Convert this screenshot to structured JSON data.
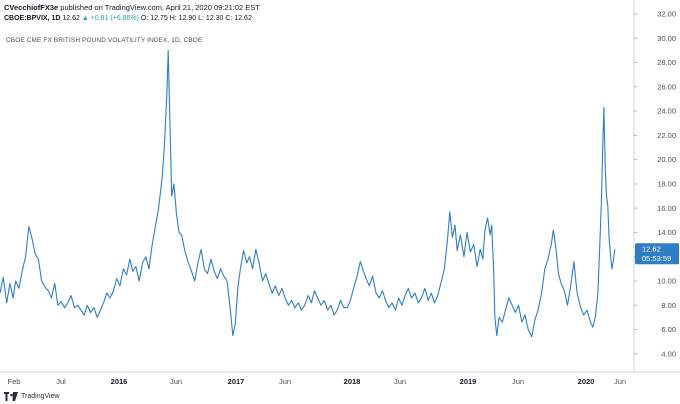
{
  "header": {
    "author": "CVecchiofFX3e",
    "published": "published on TradingView.com, April 21, 2020 09:21:02 EST",
    "symbol": "CBOE:BPVIX, 1D",
    "last": "12.62",
    "change": "▲ +0.81 (+6.86%)",
    "ohlc": "O: 12.75 H: 12.90 L: 12.30 C: 12.62"
  },
  "chart_title": "CBOE CME FX BRITISH POUND VOLATILITY INDEX, 1D, CBOE",
  "price_label": {
    "value": "12.62",
    "countdown": "05:53:59"
  },
  "footer": {
    "brand": "TradingView"
  },
  "colors": {
    "line": "#2f7ec3",
    "label_bg": "#2f7ec3",
    "axis_text": "#4a4e59"
  },
  "chart_data": {
    "type": "line",
    "x_ticks": [
      "Feb",
      "Jul",
      "2016",
      "Jun",
      "2017",
      "Jun",
      "2018",
      "Jun",
      "2019",
      "Jun",
      "2020",
      "Jun"
    ],
    "year_ticks": [
      "2016",
      "2017",
      "2018",
      "2019",
      "2020"
    ],
    "y_ticks": [
      4,
      6,
      8,
      10,
      12,
      14,
      16,
      18,
      20,
      22,
      24,
      26,
      28,
      30,
      32
    ],
    "y_tick_labels": [
      "4.00",
      "6.00",
      "8.00",
      "10.00",
      "12.00",
      "14.00",
      "16.00",
      "18.00",
      "20.00",
      "22.00",
      "24.00",
      "26.00",
      "28.00",
      "30.00",
      "32.00"
    ],
    "ylim": [
      2.5,
      32
    ],
    "xlim": [
      "2015-01-15",
      "2020-06-20"
    ],
    "grid": false,
    "series": [
      {
        "values": [
          [
            "2015-01-15",
            9.0
          ],
          [
            "2015-01-25",
            10.3
          ],
          [
            "2015-02-05",
            8.2
          ],
          [
            "2015-02-15",
            9.8
          ],
          [
            "2015-02-25",
            8.6
          ],
          [
            "2015-03-05",
            10.0
          ],
          [
            "2015-03-15",
            9.4
          ],
          [
            "2015-03-25",
            10.8
          ],
          [
            "2015-04-05",
            12.0
          ],
          [
            "2015-04-15",
            14.5
          ],
          [
            "2015-04-25",
            13.5
          ],
          [
            "2015-05-05",
            12.2
          ],
          [
            "2015-05-15",
            11.8
          ],
          [
            "2015-05-25",
            10.0
          ],
          [
            "2015-06-05",
            9.5
          ],
          [
            "2015-06-15",
            9.2
          ],
          [
            "2015-06-25",
            8.6
          ],
          [
            "2015-07-05",
            9.8
          ],
          [
            "2015-07-15",
            8.0
          ],
          [
            "2015-07-25",
            8.3
          ],
          [
            "2015-08-05",
            7.8
          ],
          [
            "2015-08-15",
            8.2
          ],
          [
            "2015-08-25",
            8.8
          ],
          [
            "2015-09-05",
            7.8
          ],
          [
            "2015-09-15",
            8.0
          ],
          [
            "2015-09-25",
            7.6
          ],
          [
            "2015-10-05",
            7.2
          ],
          [
            "2015-10-15",
            8.0
          ],
          [
            "2015-10-25",
            7.4
          ],
          [
            "2015-11-05",
            7.8
          ],
          [
            "2015-11-15",
            7.0
          ],
          [
            "2015-11-25",
            7.6
          ],
          [
            "2015-12-05",
            8.2
          ],
          [
            "2015-12-15",
            9.0
          ],
          [
            "2015-12-25",
            8.6
          ],
          [
            "2016-01-05",
            9.2
          ],
          [
            "2016-01-15",
            10.2
          ],
          [
            "2016-01-25",
            9.6
          ],
          [
            "2016-02-05",
            11.0
          ],
          [
            "2016-02-15",
            10.5
          ],
          [
            "2016-02-25",
            11.8
          ],
          [
            "2016-03-05",
            10.8
          ],
          [
            "2016-03-15",
            11.2
          ],
          [
            "2016-03-25",
            10.0
          ],
          [
            "2016-04-05",
            11.5
          ],
          [
            "2016-04-15",
            12.0
          ],
          [
            "2016-04-25",
            11.0
          ],
          [
            "2016-05-05",
            13.0
          ],
          [
            "2016-05-15",
            14.5
          ],
          [
            "2016-05-25",
            16.0
          ],
          [
            "2016-06-05",
            18.5
          ],
          [
            "2016-06-12",
            21.0
          ],
          [
            "2016-06-20",
            25.5
          ],
          [
            "2016-06-24",
            29.0
          ],
          [
            "2016-06-28",
            24.5
          ],
          [
            "2016-07-05",
            17.0
          ],
          [
            "2016-07-12",
            18.0
          ],
          [
            "2016-07-20",
            15.5
          ],
          [
            "2016-07-28",
            14.0
          ],
          [
            "2016-08-05",
            13.8
          ],
          [
            "2016-08-15",
            12.5
          ],
          [
            "2016-08-25",
            11.6
          ],
          [
            "2016-09-05",
            10.8
          ],
          [
            "2016-09-15",
            10.0
          ],
          [
            "2016-09-25",
            11.5
          ],
          [
            "2016-10-05",
            12.6
          ],
          [
            "2016-10-15",
            11.0
          ],
          [
            "2016-10-25",
            10.6
          ],
          [
            "2016-11-05",
            11.8
          ],
          [
            "2016-11-15",
            10.8
          ],
          [
            "2016-11-25",
            10.2
          ],
          [
            "2016-12-05",
            11.0
          ],
          [
            "2016-12-15",
            10.4
          ],
          [
            "2016-12-25",
            10.0
          ],
          [
            "2017-01-05",
            7.5
          ],
          [
            "2017-01-12",
            5.5
          ],
          [
            "2017-01-20",
            6.5
          ],
          [
            "2017-01-28",
            9.5
          ],
          [
            "2017-02-05",
            11.0
          ],
          [
            "2017-02-15",
            12.5
          ],
          [
            "2017-02-25",
            11.5
          ],
          [
            "2017-03-05",
            12.0
          ],
          [
            "2017-03-15",
            11.0
          ],
          [
            "2017-03-25",
            12.6
          ],
          [
            "2017-04-05",
            11.4
          ],
          [
            "2017-04-15",
            10.0
          ],
          [
            "2017-04-25",
            10.6
          ],
          [
            "2017-05-05",
            9.8
          ],
          [
            "2017-05-15",
            9.0
          ],
          [
            "2017-05-25",
            9.6
          ],
          [
            "2017-06-05",
            8.8
          ],
          [
            "2017-06-15",
            9.4
          ],
          [
            "2017-06-25",
            8.6
          ],
          [
            "2017-07-05",
            8.0
          ],
          [
            "2017-07-15",
            8.4
          ],
          [
            "2017-07-25",
            7.8
          ],
          [
            "2017-08-05",
            8.2
          ],
          [
            "2017-08-15",
            7.6
          ],
          [
            "2017-08-25",
            8.0
          ],
          [
            "2017-09-05",
            8.8
          ],
          [
            "2017-09-15",
            8.2
          ],
          [
            "2017-09-25",
            9.2
          ],
          [
            "2017-10-05",
            8.6
          ],
          [
            "2017-10-15",
            8.0
          ],
          [
            "2017-10-25",
            8.4
          ],
          [
            "2017-11-05",
            7.6
          ],
          [
            "2017-11-15",
            8.0
          ],
          [
            "2017-11-25",
            7.2
          ],
          [
            "2017-12-05",
            7.6
          ],
          [
            "2017-12-15",
            8.4
          ],
          [
            "2017-12-25",
            7.8
          ],
          [
            "2018-01-05",
            7.8
          ],
          [
            "2018-01-15",
            8.4
          ],
          [
            "2018-01-25",
            9.4
          ],
          [
            "2018-02-05",
            10.4
          ],
          [
            "2018-02-15",
            11.6
          ],
          [
            "2018-02-25",
            10.8
          ],
          [
            "2018-03-05",
            10.2
          ],
          [
            "2018-03-15",
            9.6
          ],
          [
            "2018-03-25",
            10.4
          ],
          [
            "2018-04-05",
            9.0
          ],
          [
            "2018-04-15",
            8.6
          ],
          [
            "2018-04-25",
            9.2
          ],
          [
            "2018-05-05",
            8.4
          ],
          [
            "2018-05-15",
            7.8
          ],
          [
            "2018-05-25",
            8.2
          ],
          [
            "2018-06-05",
            7.6
          ],
          [
            "2018-06-15",
            8.6
          ],
          [
            "2018-06-25",
            8.0
          ],
          [
            "2018-07-05",
            8.8
          ],
          [
            "2018-07-15",
            9.4
          ],
          [
            "2018-07-25",
            8.6
          ],
          [
            "2018-08-05",
            9.0
          ],
          [
            "2018-08-15",
            8.2
          ],
          [
            "2018-08-25",
            8.6
          ],
          [
            "2018-09-05",
            9.4
          ],
          [
            "2018-09-15",
            8.4
          ],
          [
            "2018-09-25",
            9.0
          ],
          [
            "2018-10-05",
            8.2
          ],
          [
            "2018-10-15",
            8.8
          ],
          [
            "2018-10-25",
            9.8
          ],
          [
            "2018-11-05",
            11.0
          ],
          [
            "2018-11-15",
            13.5
          ],
          [
            "2018-11-22",
            15.7
          ],
          [
            "2018-11-30",
            13.6
          ],
          [
            "2018-12-08",
            14.6
          ],
          [
            "2018-12-15",
            12.5
          ],
          [
            "2018-12-25",
            13.8
          ],
          [
            "2019-01-05",
            12.0
          ],
          [
            "2019-01-15",
            14.0
          ],
          [
            "2019-01-25",
            12.4
          ],
          [
            "2019-02-05",
            13.0
          ],
          [
            "2019-02-15",
            11.2
          ],
          [
            "2019-02-25",
            12.6
          ],
          [
            "2019-03-05",
            11.8
          ],
          [
            "2019-03-12",
            14.2
          ],
          [
            "2019-03-20",
            15.2
          ],
          [
            "2019-03-28",
            13.8
          ],
          [
            "2019-04-02",
            14.6
          ],
          [
            "2019-04-08",
            11.0
          ],
          [
            "2019-04-12",
            7.0
          ],
          [
            "2019-04-18",
            5.5
          ],
          [
            "2019-04-25",
            7.0
          ],
          [
            "2019-05-05",
            6.6
          ],
          [
            "2019-05-15",
            7.6
          ],
          [
            "2019-05-25",
            8.6
          ],
          [
            "2019-06-05",
            8.0
          ],
          [
            "2019-06-15",
            7.4
          ],
          [
            "2019-06-25",
            8.0
          ],
          [
            "2019-07-05",
            6.6
          ],
          [
            "2019-07-15",
            7.2
          ],
          [
            "2019-07-25",
            6.0
          ],
          [
            "2019-08-05",
            5.4
          ],
          [
            "2019-08-15",
            6.8
          ],
          [
            "2019-08-25",
            7.6
          ],
          [
            "2019-09-05",
            9.0
          ],
          [
            "2019-09-15",
            11.0
          ],
          [
            "2019-09-25",
            11.8
          ],
          [
            "2019-10-05",
            13.0
          ],
          [
            "2019-10-12",
            14.2
          ],
          [
            "2019-10-20",
            12.6
          ],
          [
            "2019-10-28",
            10.6
          ],
          [
            "2019-11-05",
            9.8
          ],
          [
            "2019-11-15",
            9.2
          ],
          [
            "2019-11-25",
            8.0
          ],
          [
            "2019-12-05",
            9.6
          ],
          [
            "2019-12-15",
            11.6
          ],
          [
            "2019-12-25",
            9.0
          ],
          [
            "2020-01-05",
            7.8
          ],
          [
            "2020-01-15",
            7.2
          ],
          [
            "2020-01-25",
            7.6
          ],
          [
            "2020-02-05",
            6.6
          ],
          [
            "2020-02-12",
            6.2
          ],
          [
            "2020-02-20",
            7.0
          ],
          [
            "2020-02-28",
            9.0
          ],
          [
            "2020-03-05",
            13.0
          ],
          [
            "2020-03-10",
            16.5
          ],
          [
            "2020-03-14",
            21.0
          ],
          [
            "2020-03-18",
            24.3
          ],
          [
            "2020-03-22",
            19.5
          ],
          [
            "2020-03-26",
            17.0
          ],
          [
            "2020-03-30",
            16.2
          ],
          [
            "2020-04-03",
            13.5
          ],
          [
            "2020-04-08",
            12.0
          ],
          [
            "2020-04-12",
            11.0
          ],
          [
            "2020-04-16",
            11.6
          ],
          [
            "2020-04-21",
            12.62
          ]
        ]
      }
    ]
  }
}
